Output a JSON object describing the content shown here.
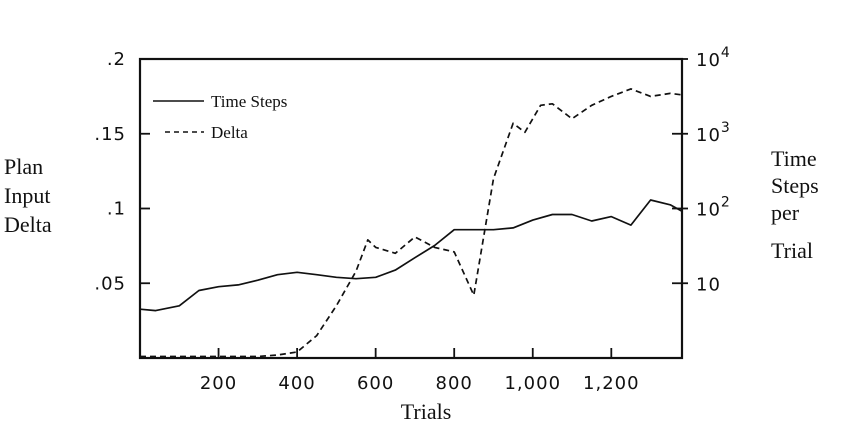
{
  "chart_data": {
    "type": "line",
    "title": "",
    "xlabel": "Trials",
    "ylabel_left": [
      "Plan",
      "Input",
      "Delta"
    ],
    "ylabel_right": [
      "Time",
      "Steps",
      "per",
      "Trial"
    ],
    "xlim": [
      0,
      1380
    ],
    "ylim_left": [
      0,
      0.2
    ],
    "ylim_right_log10": [
      0,
      4
    ],
    "right_axis_scale": "log",
    "grid": false,
    "legend_placement": "top-left",
    "x_ticks": [
      {
        "value": 200,
        "label": "200"
      },
      {
        "value": 400,
        "label": "400"
      },
      {
        "value": 600,
        "label": "600"
      },
      {
        "value": 800,
        "label": "800"
      },
      {
        "value": 1000,
        "label": "1,000"
      },
      {
        "value": 1200,
        "label": "1,200"
      }
    ],
    "y_ticks_left": [
      {
        "value": 0.05,
        "label": ".05"
      },
      {
        "value": 0.1,
        "label": ".1"
      },
      {
        "value": 0.15,
        "label": ".15"
      },
      {
        "value": 0.2,
        "label": ".2"
      }
    ],
    "y_ticks_right": [
      {
        "value": 10,
        "label": "10"
      },
      {
        "value": 100,
        "label": "10",
        "exp": "2"
      },
      {
        "value": 1000,
        "label": "10",
        "exp": "3"
      },
      {
        "value": 10000,
        "label": "10",
        "exp": "4"
      }
    ],
    "series": [
      {
        "name": "Time Steps",
        "style": "solid",
        "axis": "right",
        "x": [
          0,
          40,
          100,
          150,
          200,
          250,
          300,
          350,
          400,
          450,
          500,
          550,
          600,
          650,
          700,
          750,
          800,
          850,
          900,
          950,
          1000,
          1050,
          1100,
          1150,
          1200,
          1250,
          1300,
          1350,
          1380
        ],
        "y": [
          4.5,
          4.3,
          5,
          8,
          9,
          9.5,
          11,
          13,
          14,
          13,
          12,
          11.5,
          12,
          15,
          22,
          32,
          52,
          52,
          52,
          55,
          70,
          83,
          83,
          68,
          78,
          60,
          130,
          112,
          92
        ]
      },
      {
        "name": "Delta",
        "style": "dashed",
        "axis": "left",
        "x": [
          0,
          100,
          200,
          300,
          350,
          400,
          450,
          500,
          550,
          580,
          600,
          650,
          700,
          750,
          800,
          850,
          900,
          950,
          980,
          1020,
          1050,
          1100,
          1150,
          1200,
          1250,
          1300,
          1350,
          1380
        ],
        "y": [
          0.001,
          0.001,
          0.001,
          0.001,
          0.002,
          0.004,
          0.015,
          0.035,
          0.058,
          0.079,
          0.074,
          0.07,
          0.081,
          0.074,
          0.071,
          0.042,
          0.12,
          0.157,
          0.151,
          0.169,
          0.17,
          0.16,
          0.169,
          0.175,
          0.18,
          0.175,
          0.177,
          0.176
        ]
      }
    ]
  }
}
